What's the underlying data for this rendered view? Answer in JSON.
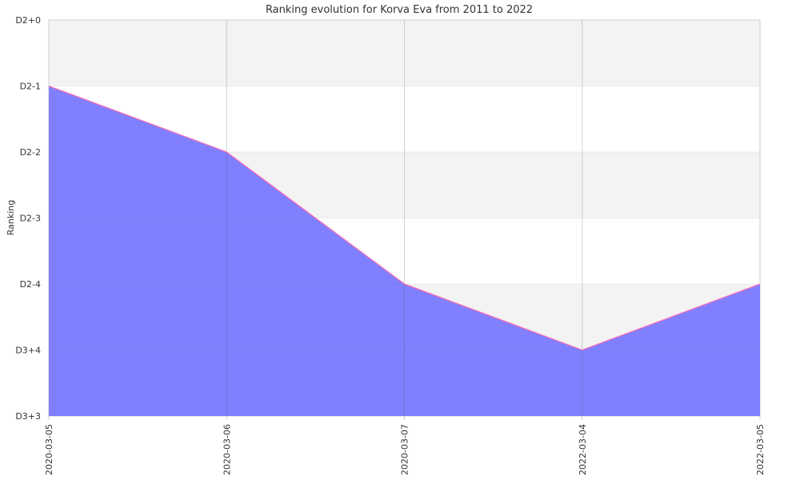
{
  "chart_data": {
    "type": "area",
    "title": "Ranking evolution for Korva Eva from 2011 to 2022",
    "ylabel": "Ranking",
    "xlabel": "",
    "y_tick_labels": [
      "D2+0",
      "D2-1",
      "D2-2",
      "D2-3",
      "D2-4",
      "D3+4",
      "D3+3"
    ],
    "categories": [
      "2020-03-05",
      "2020-03-06",
      "2020-03-07",
      "2022-03-04",
      "2022-03-05"
    ],
    "series": [
      {
        "values": [
          "D2-1",
          "D2-2",
          "D2-4",
          "D3+4",
          "D2-4"
        ]
      }
    ],
    "grid": true,
    "colors": {
      "fill": "#8080ff",
      "line": "#ff69b4",
      "band": "#f3f3f3",
      "grid": "#cccccc",
      "text": "#333333"
    }
  }
}
